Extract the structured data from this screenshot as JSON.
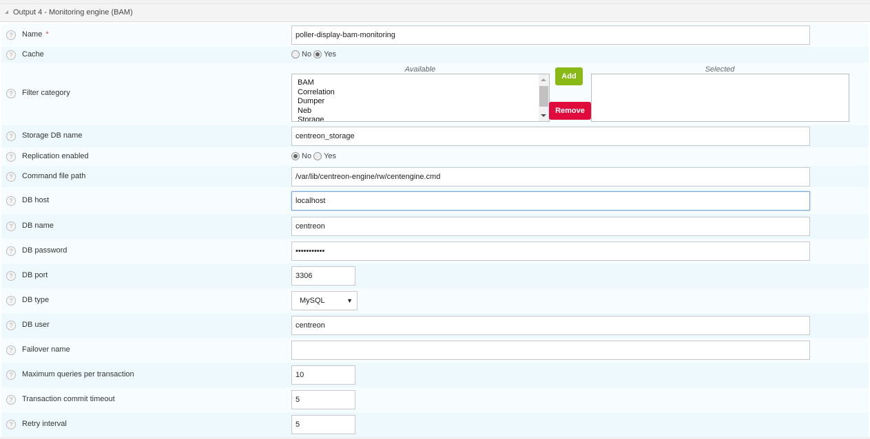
{
  "section": {
    "title": "Output 4 - Monitoring engine (BAM)",
    "collapse_icon": "triangle-collapse-icon"
  },
  "help_icon": "?",
  "required_mark": "*",
  "fields": {
    "name": {
      "label": "Name",
      "value": "poller-display-bam-monitoring",
      "required": true
    },
    "cache": {
      "label": "Cache",
      "options": [
        "No",
        "Yes"
      ],
      "selected": "Yes"
    },
    "filter_category": {
      "label": "Filter category",
      "available_caption": "Available",
      "selected_caption": "Selected",
      "available": [
        "BAM",
        "Correlation",
        "Dumper",
        "Neb",
        "Storage"
      ],
      "selected": [],
      "add_label": "Add",
      "remove_label": "Remove"
    },
    "storage_db_name": {
      "label": "Storage DB name",
      "value": "centreon_storage"
    },
    "replication_enabled": {
      "label": "Replication enabled",
      "options": [
        "No",
        "Yes"
      ],
      "selected": "No"
    },
    "command_file_path": {
      "label": "Command file path",
      "value": "/var/lib/centreon-engine/rw/centengine.cmd"
    },
    "db_host": {
      "label": "DB host",
      "value": "localhost"
    },
    "db_name": {
      "label": "DB name",
      "value": "centreon"
    },
    "db_password": {
      "label": "DB password",
      "value": "•••••••••••"
    },
    "db_port": {
      "label": "DB port",
      "value": "3306"
    },
    "db_type": {
      "label": "DB type",
      "value": "MySQL"
    },
    "db_user": {
      "label": "DB user",
      "value": "centreon"
    },
    "failover_name": {
      "label": "Failover name",
      "value": ""
    },
    "max_queries": {
      "label": "Maximum queries per transaction",
      "value": "10"
    },
    "commit_timeout": {
      "label": "Transaction commit timeout",
      "value": "5"
    },
    "retry_interval": {
      "label": "Retry interval",
      "value": "5"
    }
  },
  "colors": {
    "add": "#88b917",
    "remove": "#e00b3d",
    "row_light": "#f7fdff",
    "row_dark": "#eef9fd"
  }
}
